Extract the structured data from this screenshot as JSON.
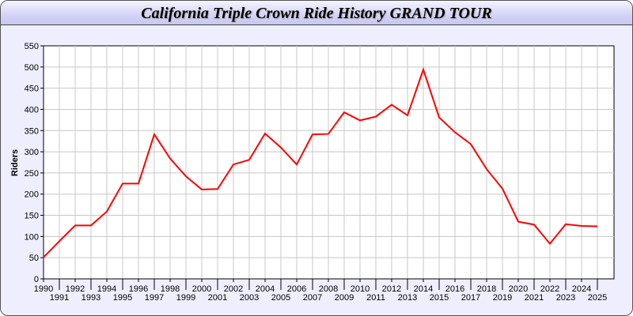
{
  "chart_data": {
    "type": "line",
    "title": "California Triple Crown Ride History GRAND TOUR",
    "xlabel": "",
    "ylabel": "Riders",
    "ylim": [
      0,
      550
    ],
    "yticks": [
      0,
      50,
      100,
      150,
      200,
      250,
      300,
      350,
      400,
      450,
      500,
      550
    ],
    "grid": true,
    "line_color": "#ff0000",
    "x": [
      "1990",
      "1991",
      "1992",
      "1993",
      "1994",
      "1995",
      "1996",
      "1997",
      "1998",
      "1999",
      "2000",
      "2001",
      "2002",
      "2003",
      "2004",
      "2005",
      "2006",
      "2007",
      "2008",
      "2009",
      "2010",
      "2011",
      "2012",
      "2013",
      "2014",
      "2015",
      "2016",
      "2017",
      "2018",
      "2019",
      "2020",
      "2021",
      "2022",
      "2023",
      "2024",
      "2025"
    ],
    "values": [
      51,
      89,
      126,
      126,
      159,
      225,
      225,
      341,
      284,
      242,
      211,
      212,
      270,
      281,
      343,
      310,
      270,
      341,
      342,
      393,
      374,
      383,
      411,
      386,
      494,
      381,
      346,
      318,
      259,
      213,
      135,
      128,
      83,
      129,
      125,
      124
    ]
  }
}
